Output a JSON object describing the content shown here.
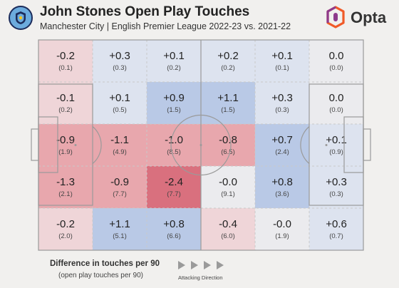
{
  "header": {
    "title": "John Stones Open Play Touches",
    "subtitle": "Manchester City | English Premier League 2022-23 vs. 2021-22",
    "brand": "Opta"
  },
  "colors": {
    "positive": "#b9c9e6",
    "negative": "#e8a7ad",
    "strong_negative": "#d9707e",
    "neutral": "#ebebee",
    "pitch_lines": "#9a9a9a",
    "opta_orange": "#f05a28",
    "opta_purple": "#8e3a8c"
  },
  "chart_data": {
    "type": "heatmap",
    "title": "John Stones Open Play Touches",
    "rows": 5,
    "cols": 6,
    "values": [
      [
        "-0.2",
        "+0.3",
        "+0.1",
        "+0.2",
        "+0.1",
        "0.0"
      ],
      [
        "-0.1",
        "+0.1",
        "+0.9",
        "+1.1",
        "+0.3",
        "0.0"
      ],
      [
        "-0.9",
        "-1.1",
        "-1.0",
        "-0.8",
        "+0.7",
        "+0.1"
      ],
      [
        "-1.3",
        "-0.9",
        "-2.4",
        "-0.0",
        "+0.8",
        "+0.3"
      ],
      [
        "-0.2",
        "+1.1",
        "+0.8",
        "-0.4",
        "-0.0",
        "+0.6"
      ]
    ],
    "base_values": [
      [
        "(0.1)",
        "(0.3)",
        "(0.2)",
        "(0.2)",
        "(0.1)",
        "(0.0)"
      ],
      [
        "(0.2)",
        "(0.5)",
        "(1.5)",
        "(1.5)",
        "(0.3)",
        "(0.0)"
      ],
      [
        "(1.9)",
        "(4.9)",
        "(8.5)",
        "(6.5)",
        "(2.4)",
        "(0.9)"
      ],
      [
        "(2.1)",
        "(7.7)",
        "(7.7)",
        "(9.1)",
        "(3.6)",
        "(0.3)"
      ],
      [
        "(2.0)",
        "(5.1)",
        "(6.6)",
        "(6.0)",
        "(1.9)",
        "(0.7)"
      ]
    ],
    "legend": {
      "title": "Difference in touches per 90",
      "subtitle": "(open play touches per 90)",
      "direction_label": "Attacking Direction"
    }
  }
}
